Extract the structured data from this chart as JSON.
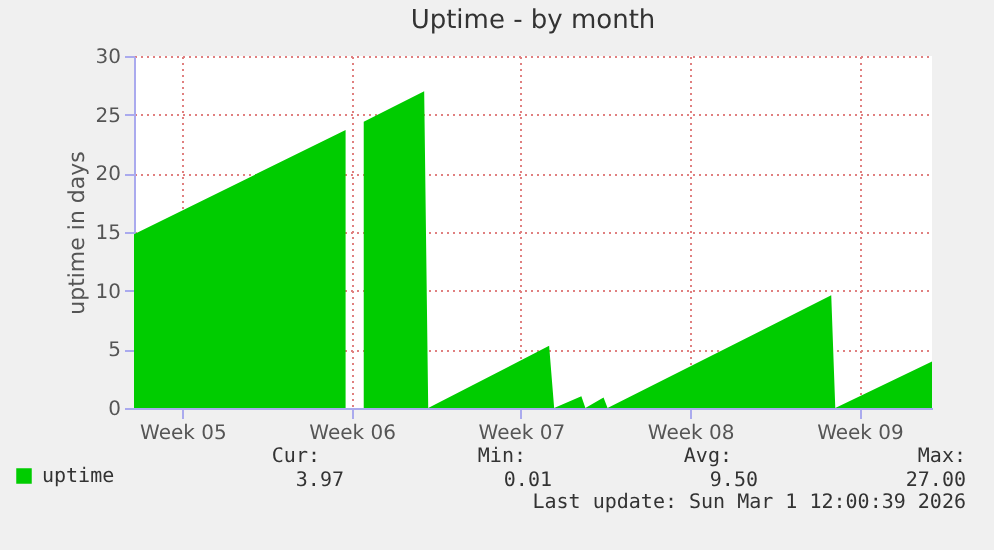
{
  "chart_data": {
    "type": "area",
    "title": "Uptime - by month",
    "ylabel": "uptime in days",
    "x": [
      "2026-01-27T12:00",
      "2026-02-05T06:00",
      "2026-02-05T14:00",
      "2026-02-06T00:00",
      "2026-02-08T12:00",
      "2026-02-08T16:00",
      "2026-02-13T16:00",
      "2026-02-13T21:00",
      "2026-02-15T00:00",
      "2026-02-15T04:00",
      "2026-02-15T22:00",
      "2026-02-16T02:00",
      "2026-02-25T08:00",
      "2026-02-25T12:00",
      "2026-03-01T12:00"
    ],
    "series": [
      {
        "name": "uptime",
        "color": "#00cc00",
        "values": [
          14.8,
          23.7,
          null,
          24.4,
          27.0,
          0,
          5.3,
          0,
          1.0,
          0,
          0.9,
          0,
          9.6,
          0,
          3.97
        ]
      }
    ],
    "xlim": [
      "2026-01-27T12:00",
      "2026-03-01T12:00"
    ],
    "xticks": [
      {
        "value": "2026-01-29T12:00",
        "label": "Week 05"
      },
      {
        "value": "2026-02-05T12:00",
        "label": "Week 06"
      },
      {
        "value": "2026-02-12T12:00",
        "label": "Week 07"
      },
      {
        "value": "2026-02-19T12:00",
        "label": "Week 08"
      },
      {
        "value": "2026-02-26T12:00",
        "label": "Week 09"
      }
    ],
    "ylim": [
      0,
      30
    ],
    "yticks": [
      0,
      5,
      10,
      15,
      20,
      25,
      30
    ],
    "grid": true,
    "legend": "bottom left",
    "annotations": [
      "Cur:",
      "Min:",
      "Avg:",
      "Max:",
      "3.97",
      "0.01",
      "9.50",
      "27.00",
      "Last update: Sun Mar  1 12:00:39 2026"
    ]
  }
}
